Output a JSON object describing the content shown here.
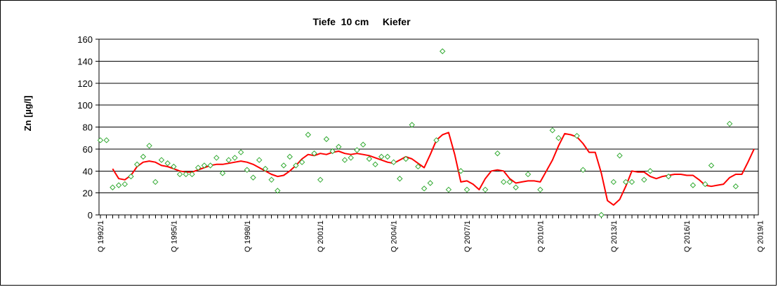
{
  "chart_data": {
    "type": "line",
    "title": "Tiefe  10 cm     Kiefer",
    "xlabel": "",
    "ylabel": "Zn [µg/l]",
    "ylim": [
      0,
      160
    ],
    "yticks": [
      0,
      20,
      40,
      60,
      80,
      100,
      120,
      140,
      160
    ],
    "grid": true,
    "legend": "none",
    "x_start": "Q 1992/1",
    "x_step": "quarter",
    "xtick_labels": [
      "Q 1992/1",
      "Q 1995/1",
      "Q 1998/1",
      "Q 2001/1",
      "Q 2004/1",
      "Q 2007/1",
      "Q 2010/1",
      "Q 2013/1",
      "Q 2016/1",
      "Q 2019/1"
    ],
    "colors": {
      "points": "#33aa33",
      "line": "#ff0000",
      "grid": "#000000",
      "frame": "#000000"
    },
    "series": [
      {
        "type": "scatter",
        "marker": "diamond",
        "values": [
          68,
          68,
          25,
          27,
          28,
          35,
          46,
          53,
          63,
          30,
          50,
          47,
          44,
          37,
          37,
          37,
          43,
          45,
          45,
          52,
          38,
          50,
          52,
          57,
          41,
          34,
          50,
          42,
          32,
          22,
          45,
          53,
          45,
          48,
          73,
          56,
          32,
          69,
          58,
          62,
          50,
          52,
          59,
          64,
          51,
          46,
          53,
          53,
          48,
          33,
          51,
          82,
          44,
          24,
          29,
          68,
          149,
          23,
          null,
          40,
          23,
          null,
          null,
          23,
          null,
          56,
          30,
          30,
          25,
          null,
          37,
          null,
          23,
          null,
          77,
          70,
          null,
          null,
          72,
          41,
          null,
          null,
          0,
          null,
          30,
          54,
          30,
          30,
          null,
          32,
          40,
          null,
          null,
          35,
          null,
          null,
          null,
          27,
          null,
          28,
          45,
          null,
          null,
          83,
          26
        ]
      },
      {
        "type": "line",
        "values": [
          null,
          null,
          42,
          33,
          32,
          36,
          44,
          48,
          49,
          48,
          45,
          44,
          42,
          40,
          39,
          39,
          41,
          43,
          45,
          46,
          46,
          47,
          48,
          49,
          48,
          46,
          43,
          40,
          37,
          35,
          36,
          40,
          45,
          51,
          55,
          54,
          56,
          55,
          57,
          58,
          56,
          55,
          56,
          55,
          54,
          52,
          50,
          48,
          47,
          50,
          53,
          51,
          47,
          43,
          55,
          68,
          73,
          75,
          55,
          30,
          31,
          28,
          23,
          33,
          40,
          41,
          40,
          33,
          29,
          30,
          31,
          31,
          30,
          40,
          50,
          63,
          74,
          73,
          71,
          65,
          57,
          57,
          38,
          13,
          9,
          14,
          26,
          40,
          39,
          39,
          35,
          33,
          35,
          36,
          37,
          37,
          36,
          36,
          32,
          27,
          26,
          27,
          28,
          34,
          37,
          37,
          48,
          60
        ]
      }
    ]
  }
}
